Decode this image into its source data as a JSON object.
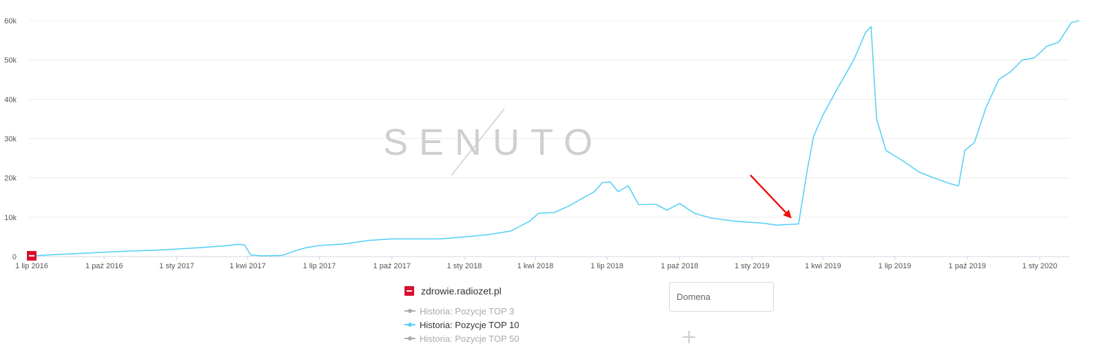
{
  "chart_data": {
    "type": "line",
    "x_tick_labels": [
      "1 lip 2016",
      "1 paź 2016",
      "1 sty 2017",
      "1 kwi 2017",
      "1 lip 2017",
      "1 paź 2017",
      "1 sty 2018",
      "1 kwi 2018",
      "1 lip 2018",
      "1 paź 2018",
      "1 sty 2019",
      "1 kwi 2019",
      "1 lip 2019",
      "1 paź 2019",
      "1 sty 2020"
    ],
    "y_tick_labels": [
      "0",
      "10k",
      "20k",
      "30k",
      "40k",
      "50k",
      "60k"
    ],
    "ylim": [
      0,
      60000
    ],
    "grid": "horizontal",
    "series": [
      {
        "name": "Historia: Pozycje TOP 10",
        "color": "#5bd0f5",
        "points": [
          [
            "2016-07-01",
            200
          ],
          [
            "2016-08-01",
            500
          ],
          [
            "2016-09-01",
            800
          ],
          [
            "2016-10-01",
            1100
          ],
          [
            "2016-11-01",
            1400
          ],
          [
            "2016-12-01",
            1600
          ],
          [
            "2017-01-01",
            1900
          ],
          [
            "2017-02-01",
            2300
          ],
          [
            "2017-03-01",
            2700
          ],
          [
            "2017-03-20",
            3100
          ],
          [
            "2017-03-28",
            3000
          ],
          [
            "2017-04-05",
            400
          ],
          [
            "2017-04-20",
            200
          ],
          [
            "2017-05-15",
            300
          ],
          [
            "2017-06-01",
            1500
          ],
          [
            "2017-06-15",
            2300
          ],
          [
            "2017-07-01",
            2800
          ],
          [
            "2017-08-01",
            3200
          ],
          [
            "2017-09-01",
            4100
          ],
          [
            "2017-10-01",
            4500
          ],
          [
            "2017-11-01",
            4500
          ],
          [
            "2017-12-01",
            4500
          ],
          [
            "2018-01-01",
            5000
          ],
          [
            "2018-02-01",
            5600
          ],
          [
            "2018-03-01",
            6500
          ],
          [
            "2018-03-25",
            9000
          ],
          [
            "2018-04-05",
            11000
          ],
          [
            "2018-04-25",
            11200
          ],
          [
            "2018-05-15",
            13000
          ],
          [
            "2018-06-01",
            15000
          ],
          [
            "2018-06-15",
            16500
          ],
          [
            "2018-06-25",
            18800
          ],
          [
            "2018-07-05",
            19000
          ],
          [
            "2018-07-15",
            16500
          ],
          [
            "2018-07-28",
            18000
          ],
          [
            "2018-08-10",
            13200
          ],
          [
            "2018-09-01",
            13300
          ],
          [
            "2018-09-15",
            11800
          ],
          [
            "2018-10-01",
            13500
          ],
          [
            "2018-10-20",
            11000
          ],
          [
            "2018-11-10",
            9800
          ],
          [
            "2018-12-10",
            9000
          ],
          [
            "2019-01-15",
            8500
          ],
          [
            "2019-02-01",
            8000
          ],
          [
            "2019-02-20",
            8200
          ],
          [
            "2019-03-01",
            8300
          ],
          [
            "2019-03-12",
            22000
          ],
          [
            "2019-03-20",
            30500
          ],
          [
            "2019-04-01",
            36000
          ],
          [
            "2019-04-20",
            43000
          ],
          [
            "2019-05-10",
            50000
          ],
          [
            "2019-05-25",
            57000
          ],
          [
            "2019-06-01",
            58500
          ],
          [
            "2019-06-08",
            35000
          ],
          [
            "2019-06-20",
            27000
          ],
          [
            "2019-07-10",
            24500
          ],
          [
            "2019-08-01",
            21500
          ],
          [
            "2019-08-20",
            20000
          ],
          [
            "2019-09-10",
            18500
          ],
          [
            "2019-09-20",
            18000
          ],
          [
            "2019-09-28",
            27000
          ],
          [
            "2019-10-10",
            29000
          ],
          [
            "2019-10-25",
            38000
          ],
          [
            "2019-11-10",
            45000
          ],
          [
            "2019-11-25",
            47000
          ],
          [
            "2019-12-10",
            50000
          ],
          [
            "2019-12-25",
            50500
          ],
          [
            "2020-01-10",
            53500
          ],
          [
            "2020-01-25",
            54500
          ],
          [
            "2020-02-10",
            59500
          ],
          [
            "2020-02-20",
            60000
          ]
        ]
      }
    ],
    "annotation": {
      "type": "arrow",
      "color": "#ee1111",
      "target_date": "2019-03-01",
      "target_value": 8300
    }
  },
  "watermark": "SENUTO",
  "legend": {
    "site": "zdrowie.radiozet.pl",
    "items": [
      {
        "label": "Historia: Pozycje TOP 3",
        "active": false,
        "color": "#aaaaaa"
      },
      {
        "label": "Historia: Pozycje TOP 10",
        "active": true,
        "color": "#5bd0f5"
      },
      {
        "label": "Historia: Pozycje TOP 50",
        "active": false,
        "color": "#aaaaaa"
      }
    ]
  },
  "domain_input": {
    "placeholder": "Domena"
  },
  "add_icon": "plus-icon"
}
